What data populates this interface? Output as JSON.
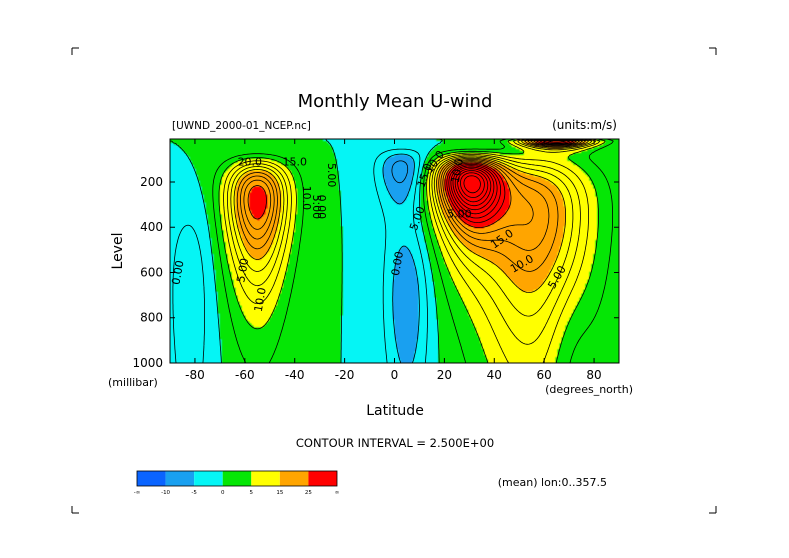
{
  "chart_data": {
    "type": "heatmap",
    "title": "Monthly Mean U-wind",
    "dataset_label": "[UWND_2000-01_NCEP.nc]",
    "units_label": "(units:m/s)",
    "xlabel": "Latitude",
    "xunits": "(degrees_north)",
    "ylabel": "Level",
    "yunits": "(millibar)",
    "xlim": [
      -90,
      90
    ],
    "ylim": [
      1000,
      10
    ],
    "y_inverted": true,
    "x_ticks": [
      -80,
      -60,
      -40,
      -20,
      0,
      20,
      40,
      60,
      80
    ],
    "x_tick_labels": [
      "-80",
      "-60",
      "-40",
      "-20",
      "0",
      "20",
      "40",
      "60",
      "80"
    ],
    "y_ticks": [
      200,
      400,
      600,
      800,
      1000
    ],
    "y_tick_labels": [
      "200",
      "400",
      "600",
      "800",
      "1000"
    ],
    "contour_interval_text": "CONTOUR INTERVAL = 2.500E+00",
    "footnote": "(mean) lon:0..357.5",
    "colorbar": {
      "labels": [
        "-∞",
        "-10",
        "-5",
        "0",
        "5",
        "15",
        "25",
        "∞"
      ],
      "colors": [
        "#0a64ff",
        "#19a0f0",
        "#05f5f5",
        "#05e605",
        "#ffff00",
        "#ffa500",
        "#ff0000"
      ]
    },
    "contour_labels": [
      "20.0",
      "15.0",
      "10.0",
      "5.00",
      "0.00",
      "10.0",
      "5.00",
      "0.00",
      "5.00",
      "0.00",
      "5.00",
      "10.0",
      "15.0",
      "5.00",
      "10.0",
      "15.0",
      "10.0",
      "5.00"
    ],
    "jets": [
      {
        "name_hint": "southern_subtropical",
        "lat": -55,
        "level": 280,
        "peak": 27.5
      },
      {
        "name_hint": "northern_subtropical",
        "lat": 30,
        "level": 200,
        "peak": 42.5
      },
      {
        "name_hint": "northern_stratospheric",
        "lat": 65,
        "level": 20,
        "peak": 35
      }
    ]
  }
}
